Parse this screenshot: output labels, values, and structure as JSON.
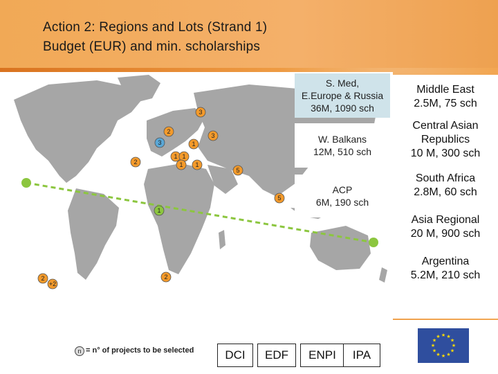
{
  "title": {
    "line1": "Action 2: Regions and Lots (Strand 1)",
    "line2": "Budget (EUR) and min. scholarships"
  },
  "map_boxes": [
    {
      "lines": [
        "S. Med,",
        "E.Europe & Russia",
        "36M, 1090 sch"
      ]
    },
    {
      "lines": [
        "W. Balkans",
        "12M, 510 sch"
      ]
    },
    {
      "lines": [
        "ACP",
        "6M, 190 sch"
      ]
    }
  ],
  "right_boxes": [
    {
      "lines": [
        "Middle East",
        "2.5M, 75 sch"
      ]
    },
    {
      "lines": [
        "Central Asian",
        "Republics",
        "10 M, 300 sch"
      ]
    },
    {
      "lines": [
        "South Africa",
        "2.8M, 60 sch"
      ]
    },
    {
      "lines": [
        "Asia Regional",
        "20 M, 900 sch"
      ]
    },
    {
      "lines": [
        "Argentina",
        "5.2M, 210 sch"
      ]
    }
  ],
  "map_markers": [
    {
      "label": "3",
      "color": "orange"
    },
    {
      "label": "2",
      "color": "orange"
    },
    {
      "label": "3",
      "color": "blue"
    },
    {
      "label": "1",
      "color": "orange"
    },
    {
      "label": "3",
      "color": "orange"
    },
    {
      "label": "2",
      "color": "orange"
    },
    {
      "label": "1",
      "color": "orange"
    },
    {
      "label": "1",
      "color": "orange"
    },
    {
      "label": "1",
      "color": "orange"
    },
    {
      "label": "1",
      "color": "orange"
    },
    {
      "label": "5",
      "color": "orange"
    },
    {
      "label": "5",
      "color": "orange"
    },
    {
      "label": "1",
      "color": "green"
    },
    {
      "label": "2",
      "color": "orange"
    },
    {
      "label": "2",
      "color": "orange"
    },
    {
      "label": "+2",
      "color": "orange"
    }
  ],
  "legend": {
    "symbol": "n",
    "text": "= n° of projects to be selected"
  },
  "instruments": [
    "DCI",
    "EDF",
    "ENPI",
    "IPA"
  ],
  "colors": {
    "marker_orange": "#f39a2b",
    "marker_blue": "#5aa7d6",
    "marker_green": "#8cc63f",
    "dashed_line": "#8cc63f",
    "land": "#a6a6a6",
    "eu_blue": "#2f4e9e",
    "eu_star": "#ffdd00"
  }
}
